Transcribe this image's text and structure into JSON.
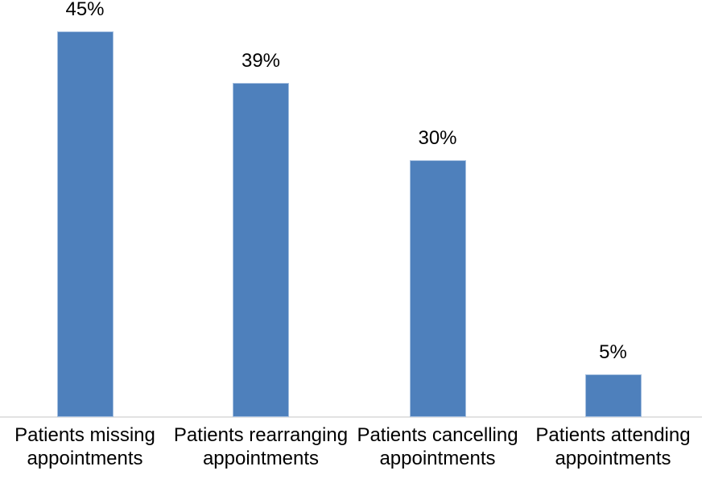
{
  "chart_data": {
    "type": "bar",
    "title": "",
    "xlabel": "",
    "ylabel": "",
    "categories": [
      "Patients missing appointments",
      "Patients rearranging appointments",
      "Patients cancelling appointments",
      "Patients attending appointments"
    ],
    "values": [
      45,
      39,
      30,
      5
    ],
    "labels": [
      "45%",
      "39%",
      "30%",
      "5%"
    ],
    "ylim": [
      0,
      48.7
    ],
    "grid": false,
    "legend": false,
    "y_axis_visible": false,
    "data_labels_position": "above-bar",
    "bar_color": "#4e80bc",
    "bar_border_color": "#a5bfdf",
    "axis_line_color": "#e2e2e2",
    "text_color": "#000000"
  }
}
